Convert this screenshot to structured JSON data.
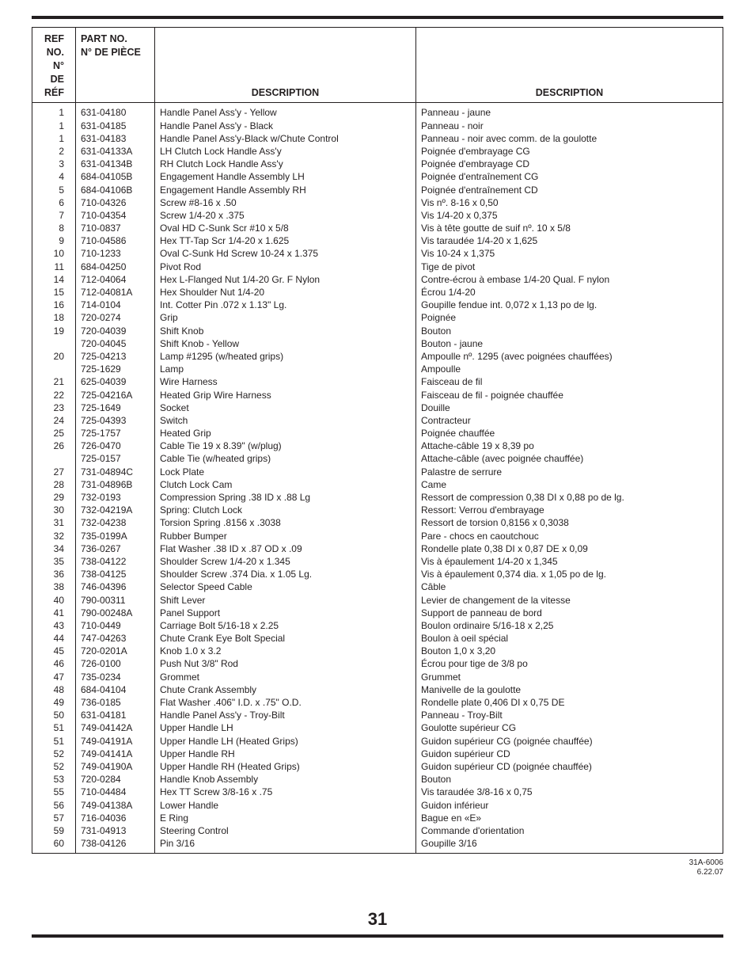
{
  "headers": {
    "ref_en": "REF NO.",
    "ref_fr": "N° DE RÉF",
    "part_en": "PART NO.",
    "part_fr": "N° DE PIÈCE",
    "desc": "DESCRIPTION"
  },
  "doc_id_line1": "31A-6006",
  "doc_id_line2": "6.22.07",
  "page_number": "31",
  "rows": [
    {
      "ref": "1",
      "part": "631-04180",
      "en": "Handle Panel Ass'y - Yellow",
      "fr": "Panneau - jaune"
    },
    {
      "ref": "1",
      "part": "631-04185",
      "en": "Handle Panel Ass'y - Black",
      "fr": "Panneau - noir"
    },
    {
      "ref": "1",
      "part": "631-04183",
      "en": "Handle Panel Ass'y-Black w/Chute Control",
      "fr": "Panneau - noir avec comm. de la goulotte"
    },
    {
      "ref": "2",
      "part": "631-04133A",
      "en": "LH Clutch Lock Handle Ass'y",
      "fr": "Poignée d'embrayage CG"
    },
    {
      "ref": "3",
      "part": "631-04134B",
      "en": "RH Clutch Lock Handle Ass'y",
      "fr": "Poignée d'embrayage CD"
    },
    {
      "ref": "4",
      "part": "684-04105B",
      "en": "Engagement Handle Assembly LH",
      "fr": "Poignée d'entraînement CG"
    },
    {
      "ref": "5",
      "part": "684-04106B",
      "en": "Engagement Handle Assembly RH",
      "fr": "Poignée d'entraînement CD"
    },
    {
      "ref": "6",
      "part": "710-04326",
      "en": "Screw #8-16 x .50",
      "fr": "Vis nº. 8-16 x 0,50"
    },
    {
      "ref": "7",
      "part": "710-04354",
      "en": "Screw 1/4-20 x .375",
      "fr": "Vis 1/4-20 x 0,375"
    },
    {
      "ref": "8",
      "part": "710-0837",
      "en": "Oval HD C-Sunk Scr #10 x 5/8",
      "fr": "Vis à tête goutte de suif nº. 10 x 5/8"
    },
    {
      "ref": "9",
      "part": "710-04586",
      "en": "Hex TT-Tap Scr 1/4-20 x 1.625",
      "fr": "Vis taraudée 1/4-20 x 1,625"
    },
    {
      "ref": "10",
      "part": "710-1233",
      "en": "Oval C-Sunk Hd Screw 10-24 x 1.375",
      "fr": "Vis 10-24 x 1,375"
    },
    {
      "ref": "11",
      "part": "684-04250",
      "en": "Pivot Rod",
      "fr": "Tige de pivot"
    },
    {
      "ref": "14",
      "part": "712-04064",
      "en": "Hex L-Flanged Nut 1/4-20 Gr. F Nylon",
      "fr": "Contre-écrou à embase 1/4-20 Qual. F nylon"
    },
    {
      "ref": "15",
      "part": "712-04081A",
      "en": "Hex Shoulder Nut 1/4-20",
      "fr": "Écrou 1/4-20"
    },
    {
      "ref": "16",
      "part": "714-0104",
      "en": "Int. Cotter Pin .072 x 1.13\" Lg.",
      "fr": "Goupille fendue int. 0,072 x 1,13 po de lg."
    },
    {
      "ref": "18",
      "part": "720-0274",
      "en": "Grip",
      "fr": "Poignée"
    },
    {
      "ref": "19",
      "part": "720-04039",
      "en": "Shift Knob",
      "fr": "Bouton"
    },
    {
      "ref": "",
      "part": "720-04045",
      "en": "Shift Knob - Yellow",
      "fr": "Bouton - jaune"
    },
    {
      "ref": "20",
      "part": "725-04213",
      "en": "Lamp #1295 (w/heated grips)",
      "fr": "Ampoulle nº. 1295 (avec poignées chauffées)"
    },
    {
      "ref": "",
      "part": "725-1629",
      "en": "Lamp",
      "fr": "Ampoulle"
    },
    {
      "ref": "21",
      "part": "625-04039",
      "en": "Wire Harness",
      "fr": "Faisceau de fil"
    },
    {
      "ref": "22",
      "part": "725-04216A",
      "en": "Heated Grip Wire Harness",
      "fr": "Faisceau de fil - poignée chauffée"
    },
    {
      "ref": "23",
      "part": "725-1649",
      "en": "Socket",
      "fr": "Douille"
    },
    {
      "ref": "24",
      "part": "725-04393",
      "en": "Switch",
      "fr": "Contracteur"
    },
    {
      "ref": "25",
      "part": "725-1757",
      "en": "Heated Grip",
      "fr": "Poignée chauffée"
    },
    {
      "ref": "26",
      "part": "726-0470",
      "en": "Cable Tie 19 x 8.39\" (w/plug)",
      "fr": "Attache-câble 19 x 8,39 po"
    },
    {
      "ref": "",
      "part": "725-0157",
      "en": "Cable Tie (w/heated grips)",
      "fr": "Attache-câble (avec poignée chauffée)"
    },
    {
      "ref": "27",
      "part": "731-04894C",
      "en": "Lock Plate",
      "fr": "Palastre de serrure"
    },
    {
      "ref": "28",
      "part": "731-04896B",
      "en": "Clutch Lock Cam",
      "fr": "Came"
    },
    {
      "ref": "29",
      "part": "732-0193",
      "en": "Compression Spring .38 ID x .88 Lg",
      "fr": "Ressort de compression 0,38 DI x 0,88 po de lg."
    },
    {
      "ref": "30",
      "part": "732-04219A",
      "en": "Spring: Clutch Lock",
      "fr": "Ressort: Verrou d'embrayage"
    },
    {
      "ref": "31",
      "part": "732-04238",
      "en": "Torsion Spring .8156 x .3038",
      "fr": "Ressort de torsion 0,8156 x 0,3038"
    },
    {
      "ref": "32",
      "part": "735-0199A",
      "en": "Rubber Bumper",
      "fr": "Pare - chocs en caoutchouc"
    },
    {
      "ref": "34",
      "part": "736-0267",
      "en": "Flat Washer .38 ID x .87 OD x .09",
      "fr": "Rondelle plate 0,38 DI x 0,87 DE x 0,09"
    },
    {
      "ref": "35",
      "part": "738-04122",
      "en": "Shoulder Screw 1/4-20 x 1.345",
      "fr": "Vis à épaulement 1/4-20 x 1,345"
    },
    {
      "ref": "36",
      "part": "738-04125",
      "en": "Shoulder Screw .374 Dia. x 1.05 Lg.",
      "fr": "Vis à épaulement 0,374 dia. x 1,05 po de lg."
    },
    {
      "ref": "38",
      "part": "746-04396",
      "en": "Selector Speed Cable",
      "fr": "Câble"
    },
    {
      "ref": "40",
      "part": "790-00311",
      "en": "Shift Lever",
      "fr": "Levier de changement de la vitesse"
    },
    {
      "ref": "41",
      "part": "790-00248A",
      "en": "Panel Support",
      "fr": "Support de panneau de bord"
    },
    {
      "ref": "43",
      "part": "710-0449",
      "en": "Carriage Bolt 5/16-18 x 2.25",
      "fr": "Boulon ordinaire 5/16-18 x 2,25"
    },
    {
      "ref": "44",
      "part": "747-04263",
      "en": "Chute Crank Eye Bolt Special",
      "fr": "Boulon à oeil spécial"
    },
    {
      "ref": "45",
      "part": "720-0201A",
      "en": "Knob 1.0 x 3.2",
      "fr": "Bouton 1,0 x 3,20"
    },
    {
      "ref": "46",
      "part": "726-0100",
      "en": "Push Nut 3/8\" Rod",
      "fr": "Écrou pour tige de 3/8 po"
    },
    {
      "ref": "47",
      "part": "735-0234",
      "en": "Grommet",
      "fr": "Grummet"
    },
    {
      "ref": "48",
      "part": "684-04104",
      "en": "Chute Crank Assembly",
      "fr": "Manivelle de la goulotte"
    },
    {
      "ref": "49",
      "part": "736-0185",
      "en": "Flat Washer .406\" I.D. x .75\" O.D.",
      "fr": "Rondelle plate 0,406 DI x 0,75 DE"
    },
    {
      "ref": "50",
      "part": "631-04181",
      "en": "Handle Panel Ass'y - Troy-Bilt",
      "fr": "Panneau - Troy-Bilt"
    },
    {
      "ref": "51",
      "part": "749-04142A",
      "en": "Upper Handle LH",
      "fr": "Goulotte supérieur CG"
    },
    {
      "ref": "51",
      "part": "749-04191A",
      "en": "Upper Handle LH (Heated Grips)",
      "fr": "Guidon supérieur CG (poignée chauffée)"
    },
    {
      "ref": "52",
      "part": "749-04141A",
      "en": "Upper Handle RH",
      "fr": "Guidon supérieur CD"
    },
    {
      "ref": "52",
      "part": "749-04190A",
      "en": "Upper Handle RH (Heated Grips)",
      "fr": "Guidon supérieur CD (poignée chauffée)"
    },
    {
      "ref": "53",
      "part": "720-0284",
      "en": "Handle Knob Assembly",
      "fr": "Bouton"
    },
    {
      "ref": "55",
      "part": "710-04484",
      "en": "Hex TT Screw 3/8-16 x .75",
      "fr": "Vis taraudée 3/8-16 x 0,75"
    },
    {
      "ref": "56",
      "part": "749-04138A",
      "en": "Lower Handle",
      "fr": "Guidon inférieur"
    },
    {
      "ref": "57",
      "part": "716-04036",
      "en": "E Ring",
      "fr": "Bague en «E»"
    },
    {
      "ref": "59",
      "part": "731-04913",
      "en": "Steering Control",
      "fr": "Commande d'orientation"
    },
    {
      "ref": "60",
      "part": "738-04126",
      "en": "Pin 3/16",
      "fr": "Goupille 3/16"
    }
  ]
}
